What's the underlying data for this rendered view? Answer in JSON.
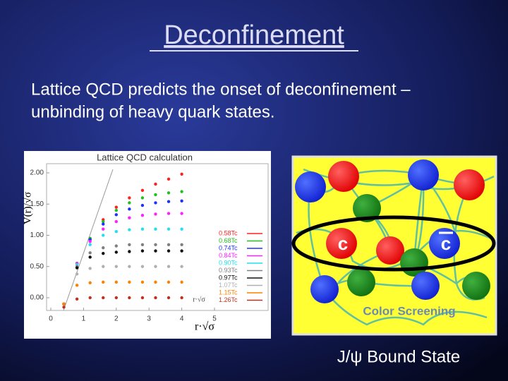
{
  "slide": {
    "title": "Deconfinement",
    "body": [
      "Lattice QCD predicts the onset of deconfinement –",
      "unbinding of heavy quark states."
    ]
  },
  "chart_data": {
    "type": "scatter",
    "title": "Lattice QCD calculation",
    "x_label": "r·√σ",
    "y_label": "V(r)/√σ",
    "xlim": [
      0,
      5
    ],
    "ylim": [
      -0.3,
      2.1
    ],
    "xticks": [
      0,
      1,
      2,
      3,
      4,
      5
    ],
    "yticks": [
      {
        "value": 0,
        "label": "0.00"
      },
      {
        "value": 0.5,
        "label": "0.50"
      },
      {
        "value": 1,
        "label": "1.00"
      },
      {
        "value": 1.5,
        "label": "1.50"
      },
      {
        "value": 2,
        "label": "2.00"
      }
    ],
    "x": [
      0.4,
      0.8,
      1.2,
      1.6,
      2.0,
      2.4,
      2.8,
      3.2,
      3.6,
      4.0
    ],
    "series": [
      {
        "name": "0.58Tc",
        "color": "#ff2020",
        "values": [
          -0.1,
          0.55,
          0.95,
          1.25,
          1.45,
          1.6,
          1.72,
          1.82,
          1.9,
          1.98
        ]
      },
      {
        "name": "0.68Tc",
        "color": "#20c020",
        "values": [
          -0.1,
          0.55,
          0.95,
          1.22,
          1.4,
          1.52,
          1.6,
          1.65,
          1.68,
          1.7
        ]
      },
      {
        "name": "0.74Tc",
        "color": "#2030ff",
        "values": [
          -0.1,
          0.55,
          0.93,
          1.18,
          1.33,
          1.42,
          1.48,
          1.52,
          1.54,
          1.55
        ]
      },
      {
        "name": "0.84Tc",
        "color": "#ff20ff",
        "values": [
          -0.1,
          0.55,
          0.9,
          1.1,
          1.22,
          1.28,
          1.32,
          1.34,
          1.35,
          1.35
        ]
      },
      {
        "name": "0.90Tc",
        "color": "#20e0f0",
        "values": [
          -0.1,
          0.53,
          0.85,
          1.0,
          1.06,
          1.09,
          1.1,
          1.1,
          1.1,
          1.1
        ]
      },
      {
        "name": "0.93Tc",
        "color": "#808080",
        "values": [
          -0.1,
          0.5,
          0.72,
          0.8,
          0.83,
          0.85,
          0.85,
          0.85,
          0.85,
          0.85
        ]
      },
      {
        "name": "0.97Tc",
        "color": "#101010",
        "values": [
          -0.1,
          0.48,
          0.65,
          0.71,
          0.73,
          0.74,
          0.75,
          0.75,
          0.75,
          0.75
        ]
      },
      {
        "name": "1.07Tc",
        "color": "#b0b0b0",
        "values": [
          -0.1,
          0.38,
          0.47,
          0.5,
          0.5,
          0.5,
          0.5,
          0.5,
          0.5,
          0.5
        ]
      },
      {
        "name": "1.15Tc",
        "color": "#ff8000",
        "values": [
          -0.1,
          0.2,
          0.24,
          0.25,
          0.25,
          0.25,
          0.25,
          0.25,
          0.25,
          0.25
        ]
      },
      {
        "name": "1.26Tc",
        "color": "#c03020",
        "values": [
          -0.15,
          -0.02,
          0.0,
          0.0,
          0.0,
          0.0,
          0.0,
          0.0,
          0.0,
          0.0
        ]
      }
    ]
  },
  "diagram": {
    "quark_label": "c",
    "antiquark_label": "c",
    "caption": "Color Screening",
    "footer": "J/ψ Bound State"
  }
}
